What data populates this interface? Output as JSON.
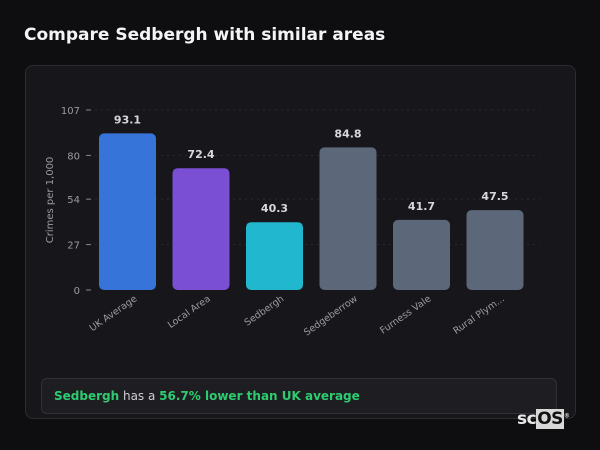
{
  "title": "Compare Sedbergh with similar areas",
  "chart_data": {
    "type": "bar",
    "categories": [
      "UK Average",
      "Local Area",
      "Sedbergh",
      "Sedgeberrow",
      "Furness Vale",
      "Rural Plym..."
    ],
    "values": [
      93.1,
      72.4,
      40.3,
      84.8,
      41.7,
      47.5
    ],
    "data_labels": [
      "93.1",
      "72.4",
      "40.3",
      "84.8",
      "41.7",
      "47.5"
    ],
    "colors": [
      "#3674d9",
      "#7a4fd4",
      "#21b7cf",
      "#5c6779",
      "#5c6779",
      "#5c6779"
    ],
    "ylabel": "Crimes per 1,000",
    "xlabel": "",
    "ylim": [
      0,
      107
    ],
    "yticks": [
      0,
      27,
      54,
      80,
      107
    ],
    "grid": true
  },
  "summary": {
    "place": "Sedbergh",
    "middle": " has a ",
    "highlight": "56.7% lower than UK average"
  },
  "logo": {
    "text_a": "sc",
    "text_b": "OS",
    "mark": "®"
  }
}
